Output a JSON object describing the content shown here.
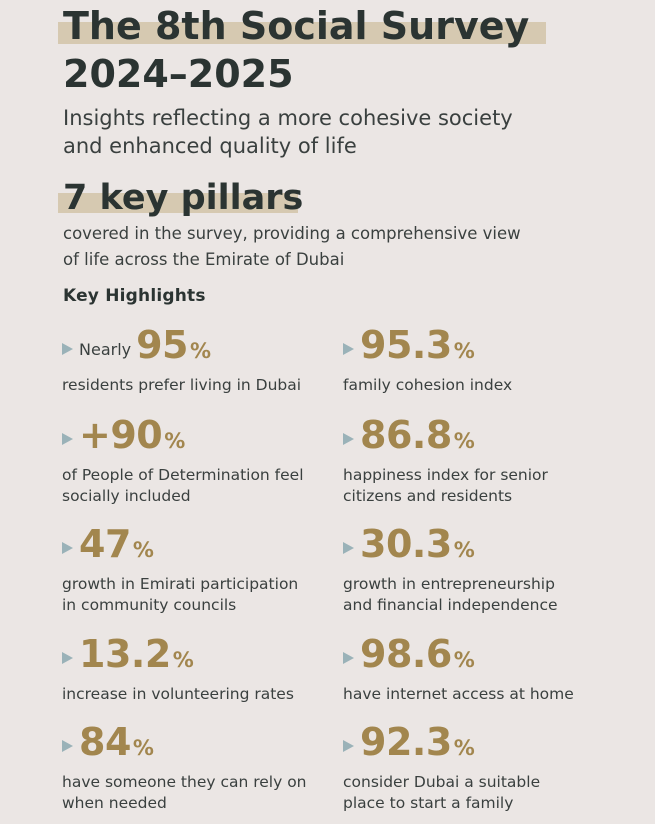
{
  "header": {
    "title_line1": "The 8th Social Survey",
    "title_line2": "2024–2025",
    "subtitle_line1": "Insights reflecting a more cohesive society",
    "subtitle_line2": "and enhanced quality of life"
  },
  "pillars": {
    "headline": "7 key pillars",
    "desc_line1": "covered in the survey, providing a comprehensive view",
    "desc_line2": "of life across the Emirate of Dubai"
  },
  "highlights": {
    "heading": "Key Highlights",
    "items": [
      {
        "prefix": "Nearly",
        "value": "95",
        "unit": "%",
        "line1": "residents prefer living in Dubai",
        "line2": ""
      },
      {
        "prefix": "",
        "value": "95.3",
        "unit": "%",
        "line1": "family cohesion index",
        "line2": ""
      },
      {
        "prefix": "",
        "value": "+90",
        "unit": "%",
        "line1": "of People of Determination feel",
        "line2": "socially included"
      },
      {
        "prefix": "",
        "value": "86.8",
        "unit": "%",
        "line1": "happiness index for senior",
        "line2": "citizens and residents"
      },
      {
        "prefix": "",
        "value": "47",
        "unit": "%",
        "line1": "growth in Emirati participation",
        "line2": "in community councils"
      },
      {
        "prefix": "",
        "value": "30.3",
        "unit": "%",
        "line1": "growth in entrepreneurship",
        "line2": "and financial independence"
      },
      {
        "prefix": "",
        "value": "13.2",
        "unit": "%",
        "line1": "increase in volunteering rates",
        "line2": ""
      },
      {
        "prefix": "",
        "value": "98.6",
        "unit": "%",
        "line1": "have internet access at home",
        "line2": ""
      },
      {
        "prefix": "",
        "value": "84",
        "unit": "%",
        "line1": "have someone they can rely on",
        "line2": "when needed"
      },
      {
        "prefix": "",
        "value": "92.3",
        "unit": "%",
        "line1": "consider Dubai a suitable",
        "line2": "place to start a family"
      }
    ]
  },
  "colors": {
    "background": "#ebe6e4",
    "highlight_band": "#d6c9b1",
    "accent_gold": "#a2864e",
    "bullet": "#9ab2b8",
    "text_dark": "#2b3432"
  }
}
